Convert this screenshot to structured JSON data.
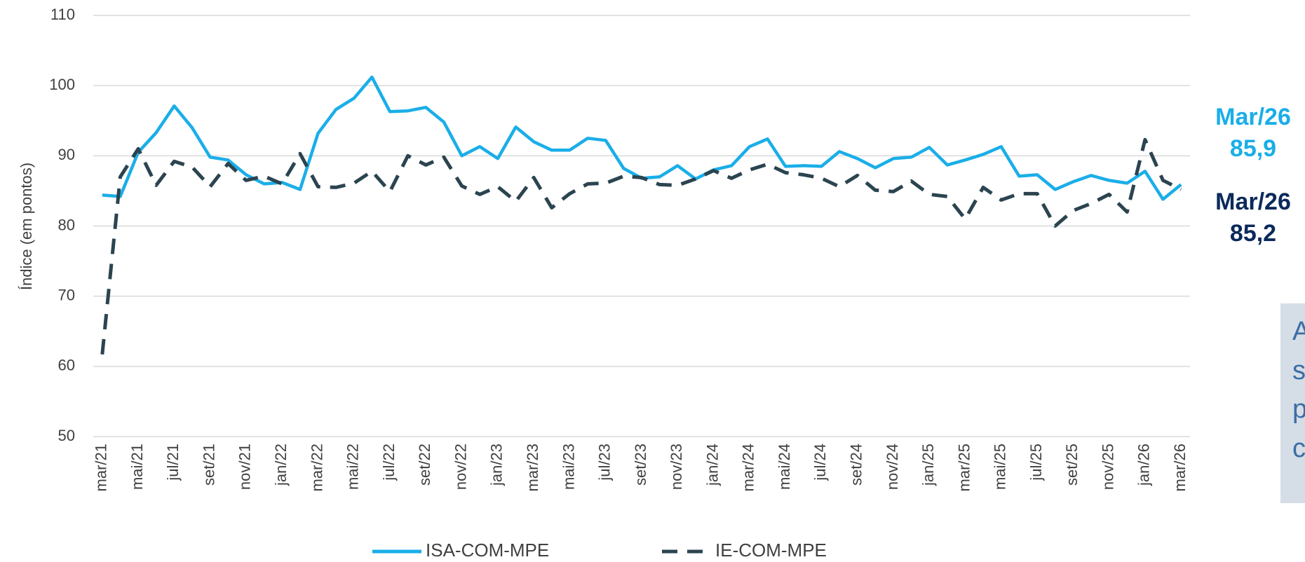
{
  "chart_data": {
    "type": "line",
    "y_label": "Índice (em pontos)",
    "categories": [
      "mar/21",
      null,
      "mai/21",
      null,
      "jul/21",
      null,
      "set/21",
      null,
      "nov/21",
      null,
      "jan/22",
      null,
      "mar/22",
      null,
      "mai/22",
      null,
      "jul/22",
      null,
      "set/22",
      null,
      "nov/22",
      null,
      "jan/23",
      null,
      "mar/23",
      null,
      "mai/23",
      null,
      "jul/23",
      null,
      "set/23",
      null,
      "nov/23",
      null,
      "jan/24",
      null,
      "mar/24",
      null,
      "mai/24",
      null,
      "jul/24",
      null,
      "set/24",
      null,
      "nov/24",
      null,
      "jan/25",
      null,
      "mar/25",
      null,
      "mai/25",
      null,
      "jul/25",
      null,
      "set/25",
      null,
      "nov/25",
      null,
      "jan/26",
      null,
      "mar/26"
    ],
    "series": [
      {
        "name": "ISA-COM-MPE",
        "color": "#1aaee8",
        "dash": false,
        "values": [
          84.4,
          84.2,
          90.5,
          93.3,
          97.1,
          94.0,
          89.8,
          89.4,
          87.3,
          86.0,
          86.2,
          85.2,
          93.2,
          96.6,
          98.2,
          101.2,
          96.3,
          96.4,
          96.9,
          94.8,
          90.0,
          91.3,
          89.6,
          94.1,
          92.0,
          90.8,
          90.8,
          92.5,
          92.2,
          88.2,
          86.8,
          87.0,
          88.6,
          86.7,
          88.0,
          88.6,
          91.3,
          92.4,
          88.5,
          88.6,
          88.5,
          90.6,
          89.6,
          88.3,
          89.6,
          89.8,
          91.2,
          88.7,
          89.4,
          90.2,
          91.3,
          87.1,
          87.3,
          85.2,
          86.3,
          87.2,
          86.5,
          86.1,
          87.8,
          83.8,
          85.9
        ]
      },
      {
        "name": "IE-COM-MPE",
        "color": "#2b4450",
        "dash": true,
        "values": [
          61.7,
          87.0,
          91.0,
          85.8,
          89.2,
          88.4,
          85.6,
          88.9,
          86.5,
          87.1,
          86.0,
          90.3,
          85.6,
          85.5,
          86.1,
          87.8,
          84.9,
          90.0,
          88.7,
          89.8,
          85.7,
          84.5,
          85.6,
          83.5,
          86.9,
          82.6,
          84.6,
          86.0,
          86.1,
          87.1,
          86.9,
          85.9,
          85.8,
          86.7,
          87.9,
          86.8,
          88.0,
          88.8,
          87.6,
          87.3,
          86.8,
          85.6,
          87.2,
          85.1,
          84.9,
          86.4,
          84.5,
          84.2,
          81.0,
          85.5,
          83.7,
          84.6,
          84.6,
          80.0,
          82.2,
          83.2,
          84.5,
          82.0,
          92.3,
          86.5,
          85.2
        ]
      }
    ],
    "ylim": [
      50,
      110
    ],
    "yticks": [
      50,
      60,
      70,
      80,
      90,
      100,
      110
    ],
    "grid": true,
    "annotations": [
      {
        "lines": [
          "Mar/26",
          "85,9"
        ],
        "color": "#1aaee8"
      },
      {
        "lines": [
          "Mar/26",
          "85,2"
        ],
        "color": "#0b2a5b"
      }
    ],
    "side_box_fragments": [
      "A",
      "s",
      "p",
      "c"
    ]
  }
}
